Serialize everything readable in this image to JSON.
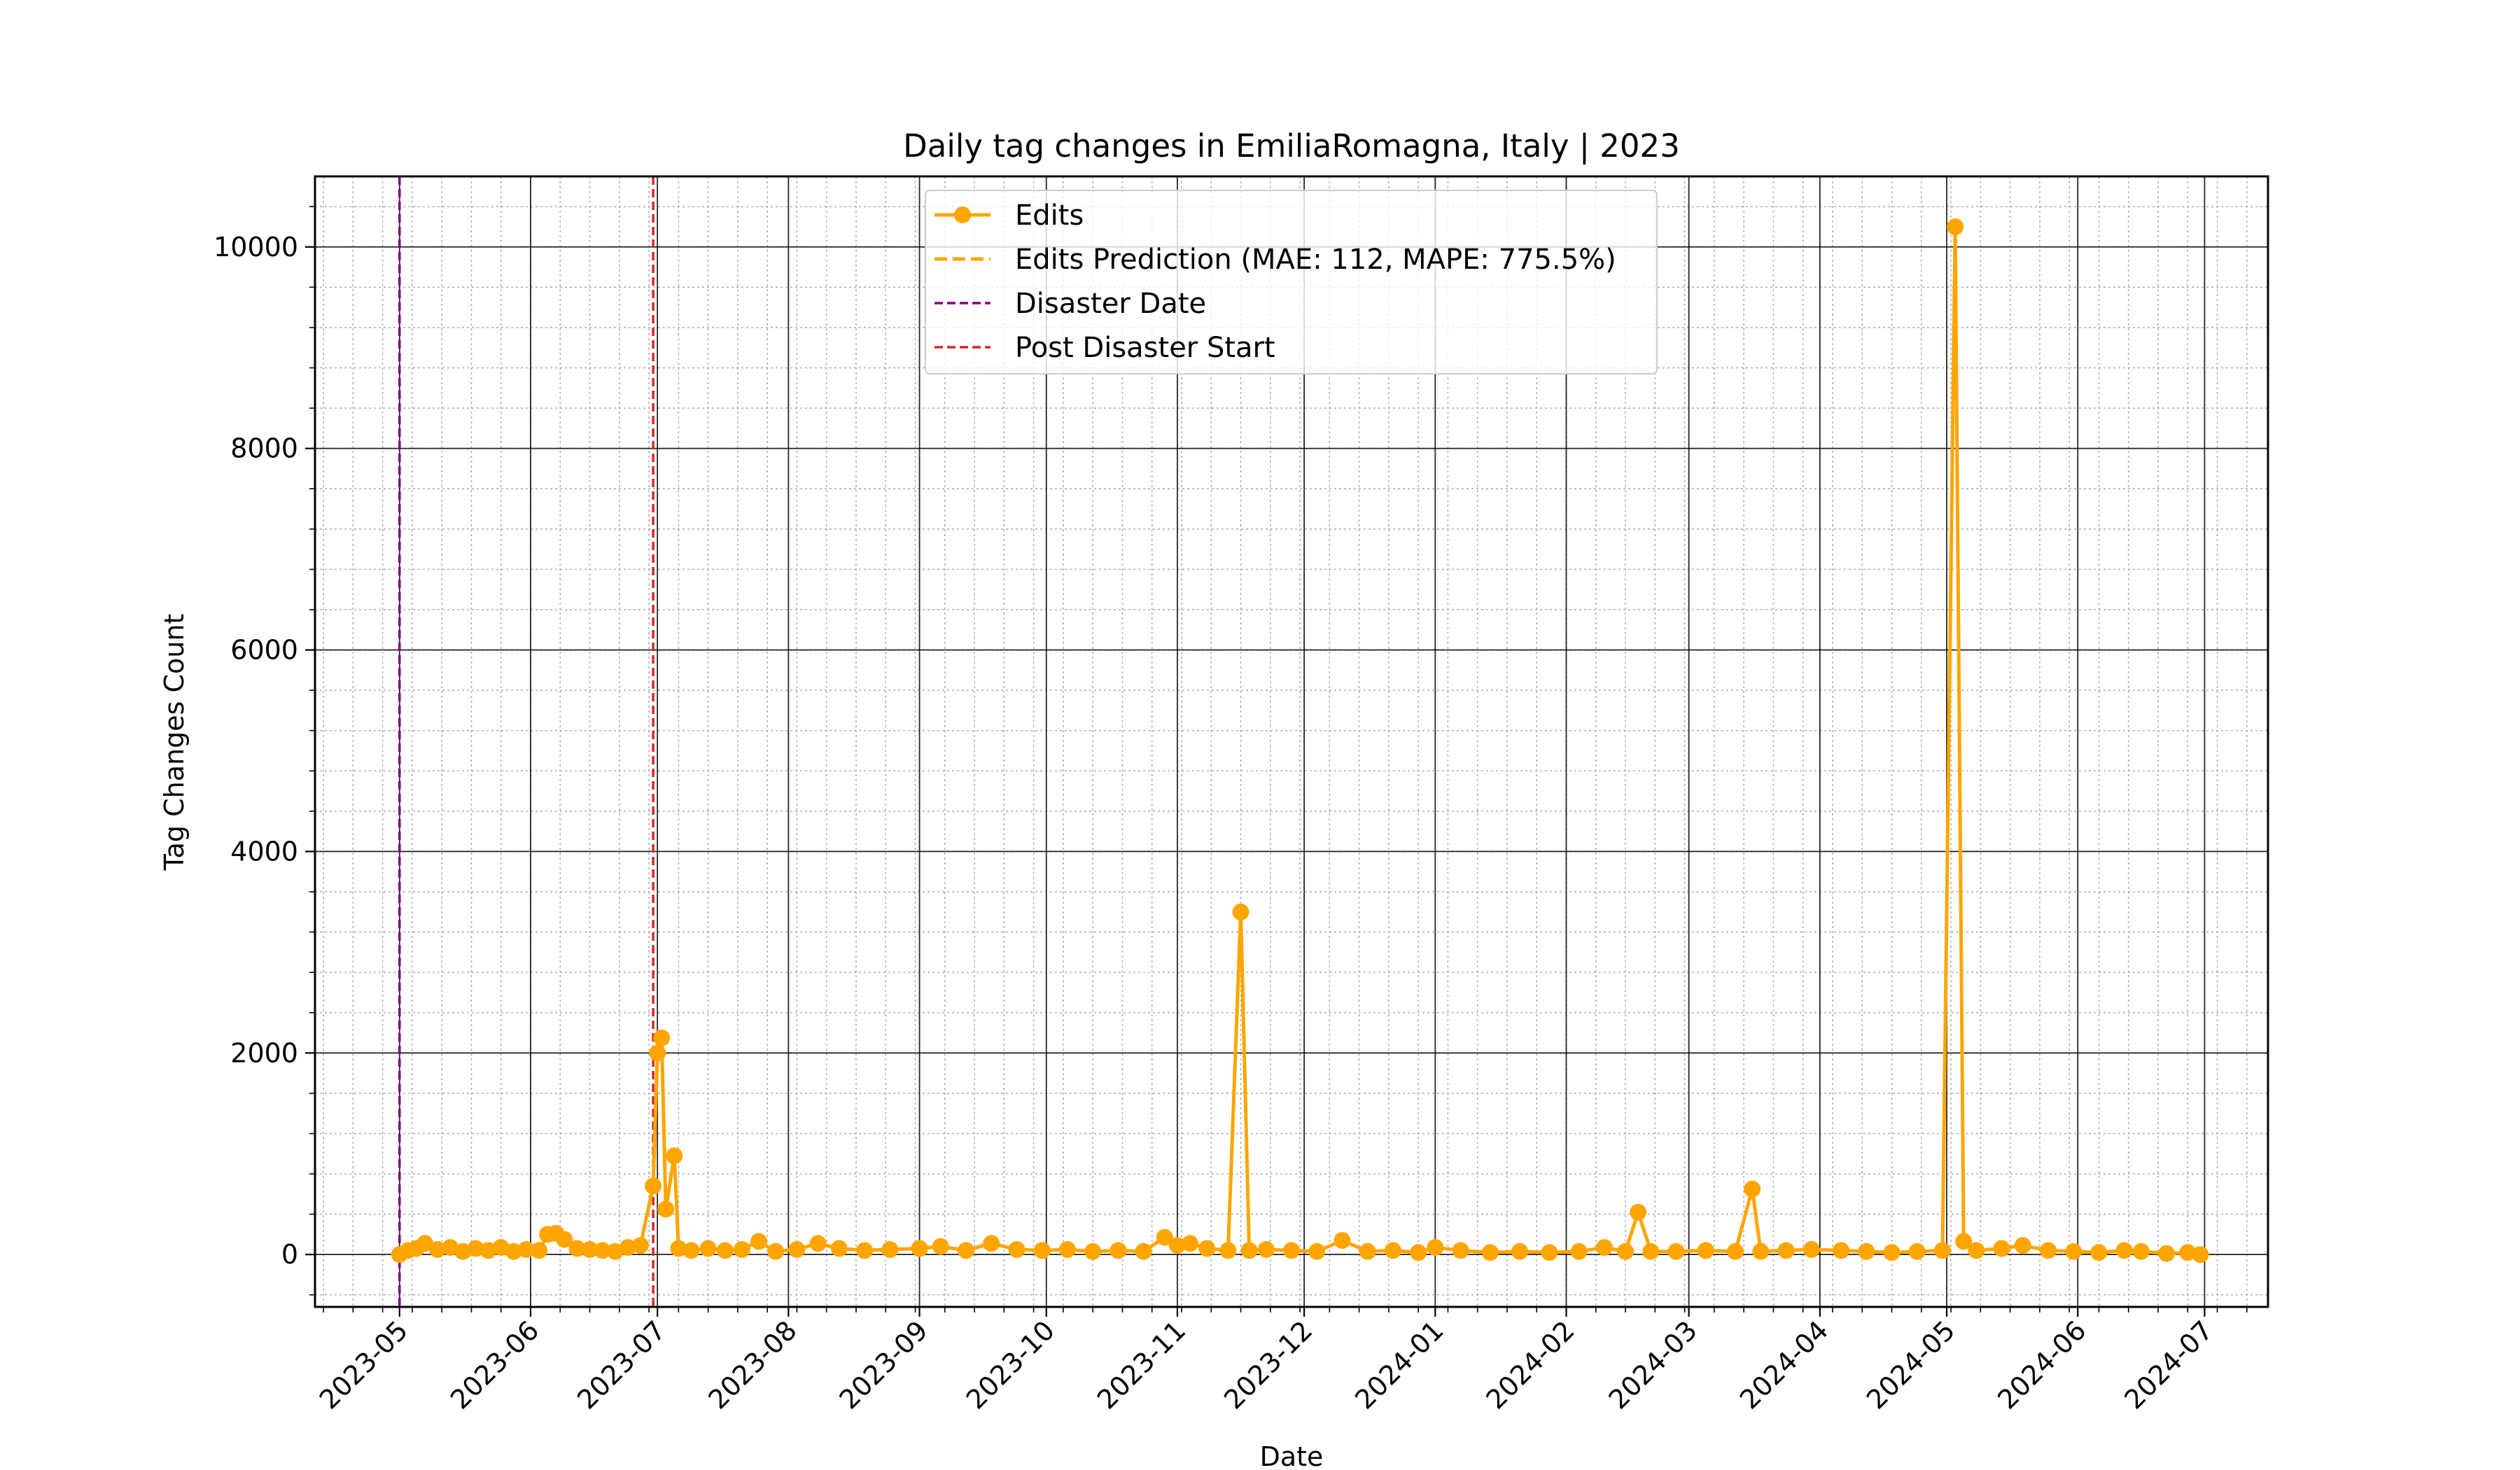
{
  "chart_data": {
    "type": "line",
    "title": "Daily tag changes in EmiliaRomagna, Italy | 2023",
    "xlabel": "Date",
    "ylabel": "Tag Changes Count",
    "x_range": [
      "2023-04-11",
      "2024-07-16"
    ],
    "ylim": [
      -520,
      10700
    ],
    "x_ticks": [
      "2023-05",
      "2023-06",
      "2023-07",
      "2023-08",
      "2023-09",
      "2023-10",
      "2023-11",
      "2023-12",
      "2024-01",
      "2024-02",
      "2024-03",
      "2024-04",
      "2024-05",
      "2024-06",
      "2024-07"
    ],
    "y_ticks": [
      0,
      2000,
      4000,
      6000,
      8000,
      10000
    ],
    "grid": {
      "major": true,
      "minor": true
    },
    "legend_position": "top-center",
    "legend": [
      {
        "label": "Edits",
        "style": "line-marker",
        "color": "#ffa500"
      },
      {
        "label": "Edits Prediction (MAE: 112, MAPE: 775.5%)",
        "style": "dashed",
        "color": "#ffa500"
      },
      {
        "label": "Disaster Date",
        "style": "dashed",
        "color": "#800080"
      },
      {
        "label": "Post Disaster Start",
        "style": "dashed",
        "color": "#d62728"
      }
    ],
    "vlines": [
      {
        "name": "Disaster Date",
        "date": "2023-05-01",
        "color": "#800080"
      },
      {
        "name": "Post Disaster Start",
        "date": "2023-06-30",
        "color": "#d62728"
      }
    ],
    "series": [
      {
        "name": "Edits",
        "color": "#ffa500",
        "points": [
          [
            "2023-05-01",
            0
          ],
          [
            "2023-05-03",
            40
          ],
          [
            "2023-05-05",
            60
          ],
          [
            "2023-05-07",
            110
          ],
          [
            "2023-05-10",
            50
          ],
          [
            "2023-05-13",
            70
          ],
          [
            "2023-05-16",
            30
          ],
          [
            "2023-05-19",
            60
          ],
          [
            "2023-05-22",
            40
          ],
          [
            "2023-05-25",
            70
          ],
          [
            "2023-05-28",
            30
          ],
          [
            "2023-05-31",
            50
          ],
          [
            "2023-06-03",
            40
          ],
          [
            "2023-06-05",
            200
          ],
          [
            "2023-06-07",
            210
          ],
          [
            "2023-06-09",
            150
          ],
          [
            "2023-06-12",
            60
          ],
          [
            "2023-06-15",
            50
          ],
          [
            "2023-06-18",
            40
          ],
          [
            "2023-06-21",
            30
          ],
          [
            "2023-06-24",
            70
          ],
          [
            "2023-06-27",
            90
          ],
          [
            "2023-06-30",
            680
          ],
          [
            "2023-07-01",
            2000
          ],
          [
            "2023-07-02",
            2150
          ],
          [
            "2023-07-03",
            450
          ],
          [
            "2023-07-05",
            980
          ],
          [
            "2023-07-06",
            60
          ],
          [
            "2023-07-09",
            40
          ],
          [
            "2023-07-13",
            60
          ],
          [
            "2023-07-17",
            40
          ],
          [
            "2023-07-21",
            50
          ],
          [
            "2023-07-25",
            130
          ],
          [
            "2023-07-29",
            30
          ],
          [
            "2023-08-03",
            50
          ],
          [
            "2023-08-08",
            110
          ],
          [
            "2023-08-13",
            60
          ],
          [
            "2023-08-19",
            40
          ],
          [
            "2023-08-25",
            50
          ],
          [
            "2023-09-01",
            60
          ],
          [
            "2023-09-06",
            80
          ],
          [
            "2023-09-12",
            40
          ],
          [
            "2023-09-18",
            110
          ],
          [
            "2023-09-24",
            50
          ],
          [
            "2023-09-30",
            40
          ],
          [
            "2023-10-06",
            50
          ],
          [
            "2023-10-12",
            30
          ],
          [
            "2023-10-18",
            40
          ],
          [
            "2023-10-24",
            30
          ],
          [
            "2023-10-29",
            170
          ],
          [
            "2023-11-01",
            90
          ],
          [
            "2023-11-04",
            110
          ],
          [
            "2023-11-08",
            60
          ],
          [
            "2023-11-13",
            40
          ],
          [
            "2023-11-16",
            3400
          ],
          [
            "2023-11-18",
            40
          ],
          [
            "2023-11-22",
            50
          ],
          [
            "2023-11-28",
            40
          ],
          [
            "2023-12-04",
            30
          ],
          [
            "2023-12-10",
            140
          ],
          [
            "2023-12-16",
            30
          ],
          [
            "2023-12-22",
            40
          ],
          [
            "2023-12-28",
            20
          ],
          [
            "2024-01-01",
            70
          ],
          [
            "2024-01-07",
            40
          ],
          [
            "2024-01-14",
            20
          ],
          [
            "2024-01-21",
            30
          ],
          [
            "2024-01-28",
            20
          ],
          [
            "2024-02-04",
            30
          ],
          [
            "2024-02-10",
            70
          ],
          [
            "2024-02-15",
            30
          ],
          [
            "2024-02-18",
            420
          ],
          [
            "2024-02-21",
            30
          ],
          [
            "2024-02-27",
            30
          ],
          [
            "2024-03-05",
            40
          ],
          [
            "2024-03-12",
            30
          ],
          [
            "2024-03-16",
            650
          ],
          [
            "2024-03-18",
            30
          ],
          [
            "2024-03-24",
            40
          ],
          [
            "2024-03-30",
            50
          ],
          [
            "2024-04-06",
            40
          ],
          [
            "2024-04-12",
            30
          ],
          [
            "2024-04-18",
            20
          ],
          [
            "2024-04-24",
            30
          ],
          [
            "2024-04-30",
            40
          ],
          [
            "2024-05-03",
            10200
          ],
          [
            "2024-05-05",
            130
          ],
          [
            "2024-05-08",
            40
          ],
          [
            "2024-05-14",
            60
          ],
          [
            "2024-05-19",
            90
          ],
          [
            "2024-05-25",
            40
          ],
          [
            "2024-05-31",
            30
          ],
          [
            "2024-06-06",
            20
          ],
          [
            "2024-06-12",
            40
          ],
          [
            "2024-06-16",
            30
          ],
          [
            "2024-06-22",
            10
          ],
          [
            "2024-06-27",
            20
          ],
          [
            "2024-06-30",
            0
          ]
        ]
      }
    ]
  }
}
